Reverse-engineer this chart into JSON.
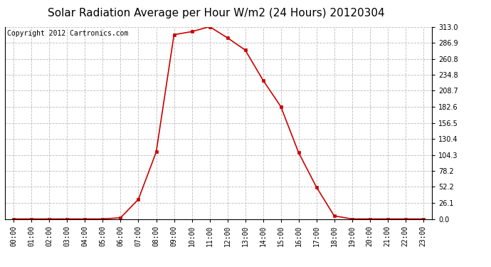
{
  "title": "Solar Radiation Average per Hour W/m2 (24 Hours) 20120304",
  "copyright_text": "Copyright 2012 Cartronics.com",
  "hours": [
    "00:00",
    "01:00",
    "02:00",
    "03:00",
    "04:00",
    "05:00",
    "06:00",
    "07:00",
    "08:00",
    "09:00",
    "10:00",
    "11:00",
    "12:00",
    "13:00",
    "14:00",
    "15:00",
    "16:00",
    "17:00",
    "18:00",
    "19:00",
    "20:00",
    "21:00",
    "22:00",
    "23:00"
  ],
  "values": [
    0,
    0,
    0,
    0,
    0,
    0,
    2,
    32,
    109,
    300,
    305,
    313,
    295,
    275,
    226,
    183,
    108,
    52,
    5,
    0,
    0,
    0,
    0,
    0
  ],
  "line_color": "#cc0000",
  "marker": "s",
  "marker_size": 3,
  "background_color": "#ffffff",
  "plot_bg_color": "#ffffff",
  "grid_color": "#bbbbbb",
  "yticks": [
    0.0,
    26.1,
    52.2,
    78.2,
    104.3,
    130.4,
    156.5,
    182.6,
    208.7,
    234.8,
    260.8,
    286.9,
    313.0
  ],
  "ymax": 313.0,
  "ymin": 0.0,
  "title_fontsize": 11,
  "tick_fontsize": 7,
  "copyright_fontsize": 7
}
